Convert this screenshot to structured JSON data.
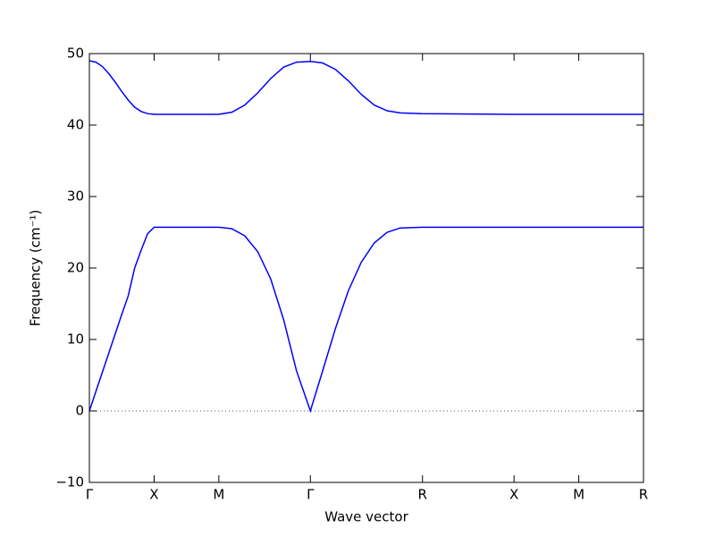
{
  "chart_data": {
    "type": "line",
    "xlabel": "Wave vector",
    "ylabel": "Frequency (cm⁻¹)",
    "xlim": [
      0,
      4.28
    ],
    "ylim": [
      -10,
      50
    ],
    "xticks": [
      {
        "value": 0,
        "label": "Γ"
      },
      {
        "value": 0.5,
        "label": "X"
      },
      {
        "value": 1.0,
        "label": "M"
      },
      {
        "value": 1.707,
        "label": "Γ"
      },
      {
        "value": 2.573,
        "label": "R"
      },
      {
        "value": 3.28,
        "label": "X"
      },
      {
        "value": 3.78,
        "label": "M"
      },
      {
        "value": 4.28,
        "label": "R"
      }
    ],
    "yticks": [
      {
        "value": -10,
        "label": "−10"
      },
      0,
      10,
      20,
      30,
      40,
      50
    ],
    "reference_line": 0,
    "series": [
      {
        "color": "#0000ff",
        "x": [
          0,
          0.05,
          0.1,
          0.15,
          0.2,
          0.25,
          0.3,
          0.35,
          0.4,
          0.45,
          0.5,
          1.0,
          1.1,
          1.2,
          1.3,
          1.4,
          1.5,
          1.6,
          1.707,
          1.8,
          1.9,
          2.0,
          2.1,
          2.2,
          2.3,
          2.4,
          2.573,
          3.28,
          3.78,
          4.28
        ],
        "values": [
          0,
          2.7,
          5.4,
          8.1,
          10.8,
          13.5,
          16.1,
          20.0,
          22.5,
          24.8,
          25.7,
          25.7,
          25.5,
          24.5,
          22.3,
          18.5,
          12.8,
          5.6,
          0,
          5.5,
          11.5,
          16.8,
          20.8,
          23.5,
          25.0,
          25.6,
          25.7,
          25.7,
          25.7,
          25.7
        ]
      },
      {
        "color": "#0000ff",
        "x": [
          0,
          0.05,
          0.1,
          0.15,
          0.2,
          0.25,
          0.3,
          0.35,
          0.4,
          0.45,
          0.5,
          1.0,
          1.1,
          1.2,
          1.3,
          1.4,
          1.5,
          1.6,
          1.707,
          1.8,
          1.9,
          2.0,
          2.1,
          2.2,
          2.3,
          2.4,
          2.573,
          3.28,
          3.78,
          4.28
        ],
        "values": [
          49.0,
          48.8,
          48.2,
          47.2,
          46.0,
          44.7,
          43.5,
          42.5,
          41.9,
          41.6,
          41.5,
          41.5,
          41.8,
          42.8,
          44.5,
          46.5,
          48.1,
          48.8,
          48.9,
          48.7,
          47.8,
          46.2,
          44.3,
          42.8,
          42.0,
          41.7,
          41.6,
          41.5,
          41.5,
          41.5
        ]
      }
    ]
  }
}
